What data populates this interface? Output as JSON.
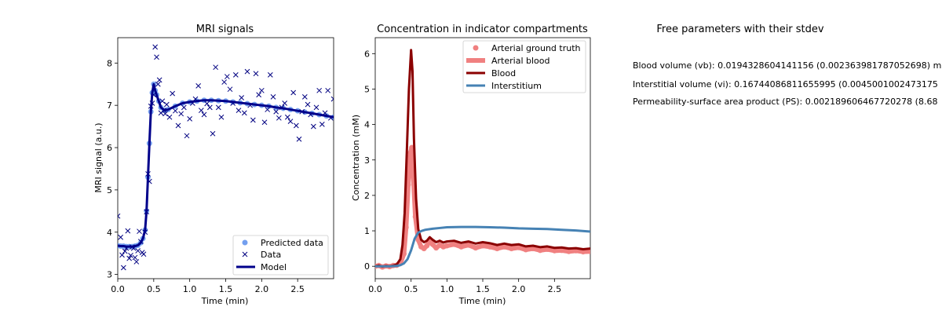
{
  "chart_data": [
    {
      "type": "line",
      "title": "MRI signals",
      "xlabel": "Time (min)",
      "ylabel": "MRI signal (a.u.)",
      "xlim": [
        0,
        3.0
      ],
      "ylim": [
        2.9,
        8.6
      ],
      "xticks": [
        "0.0",
        "0.5",
        "1.0",
        "1.5",
        "2.0",
        "2.5"
      ],
      "yticks": [
        "3",
        "4",
        "5",
        "6",
        "7",
        "8"
      ],
      "legend": {
        "placement": "bottom-right",
        "entries": [
          "Predicted data",
          "Data",
          "Model"
        ]
      },
      "series": [
        {
          "name": "Predicted data",
          "marker": "circle",
          "color": "#6495ed",
          "x": [
            0.0,
            0.04,
            0.08,
            0.12,
            0.16,
            0.2,
            0.24,
            0.28,
            0.32,
            0.35,
            0.38,
            0.4,
            0.42,
            0.44,
            0.46,
            0.48,
            0.5,
            0.52,
            0.54,
            0.57,
            0.6,
            0.65,
            0.7,
            0.8,
            0.9,
            1.0,
            1.1,
            1.2,
            1.3,
            1.4,
            1.5,
            1.6,
            1.7,
            1.8,
            1.9,
            2.0,
            2.1,
            2.2,
            2.3,
            2.4,
            2.5,
            2.6,
            2.7,
            2.8,
            2.9,
            3.0
          ],
          "y": [
            3.68,
            3.67,
            3.67,
            3.66,
            3.66,
            3.66,
            3.67,
            3.69,
            3.75,
            3.85,
            4.05,
            4.5,
            5.3,
            6.1,
            6.85,
            7.3,
            7.5,
            7.35,
            7.25,
            7.1,
            6.95,
            6.88,
            6.9,
            6.98,
            7.05,
            7.08,
            7.1,
            7.12,
            7.12,
            7.11,
            7.1,
            7.08,
            7.06,
            7.04,
            7.02,
            7.0,
            6.98,
            6.95,
            6.93,
            6.9,
            6.87,
            6.84,
            6.81,
            6.78,
            6.75,
            6.72
          ]
        },
        {
          "name": "Data",
          "marker": "x",
          "color": "#000080",
          "x": [
            0.0,
            0.04,
            0.06,
            0.08,
            0.1,
            0.12,
            0.14,
            0.16,
            0.18,
            0.2,
            0.22,
            0.24,
            0.26,
            0.28,
            0.3,
            0.32,
            0.34,
            0.36,
            0.38,
            0.4,
            0.42,
            0.44,
            0.46,
            0.48,
            0.5,
            0.52,
            0.54,
            0.56,
            0.58,
            0.6,
            0.62,
            0.64,
            0.66,
            0.68,
            0.72,
            0.76,
            0.8,
            0.84,
            0.88,
            0.92,
            0.96,
            1.0,
            1.04,
            1.08,
            1.12,
            1.16,
            1.2,
            1.24,
            1.28,
            1.32,
            1.36,
            1.4,
            1.44,
            1.48,
            1.52,
            1.56,
            1.6,
            1.64,
            1.68,
            1.72,
            1.76,
            1.8,
            1.84,
            1.88,
            1.92,
            1.96,
            2.0,
            2.04,
            2.08,
            2.12,
            2.16,
            2.2,
            2.24,
            2.28,
            2.32,
            2.36,
            2.4,
            2.44,
            2.48,
            2.52,
            2.56,
            2.6,
            2.64,
            2.68,
            2.72,
            2.76,
            2.8,
            2.84,
            2.88,
            2.92,
            2.96,
            3.0
          ],
          "y": [
            4.38,
            3.88,
            3.46,
            3.16,
            3.55,
            3.62,
            4.03,
            3.38,
            3.45,
            3.65,
            3.62,
            3.4,
            3.3,
            3.56,
            4.02,
            3.78,
            3.52,
            3.48,
            4.0,
            4.48,
            5.38,
            5.2,
            6.98,
            7.05,
            7.25,
            8.38,
            8.14,
            7.5,
            7.6,
            6.82,
            7.1,
            6.88,
            6.8,
            7.02,
            6.72,
            7.28,
            6.87,
            6.52,
            6.8,
            6.95,
            6.28,
            6.68,
            7.05,
            7.15,
            7.46,
            6.88,
            6.78,
            7.04,
            6.95,
            6.33,
            7.9,
            6.95,
            6.72,
            7.55,
            7.68,
            7.38,
            7.05,
            7.72,
            6.88,
            7.18,
            6.82,
            7.8,
            7.0,
            6.65,
            7.75,
            7.25,
            7.35,
            6.6,
            6.9,
            7.72,
            7.2,
            6.85,
            6.7,
            6.95,
            7.05,
            6.72,
            6.62,
            7.3,
            6.52,
            6.2,
            6.85,
            7.2,
            7.02,
            6.78,
            6.5,
            6.95,
            7.35,
            6.55,
            6.82,
            7.35,
            6.7,
            7.15
          ]
        },
        {
          "name": "Model",
          "marker": "line",
          "color": "#00008b",
          "x": [
            0.0,
            0.04,
            0.08,
            0.12,
            0.16,
            0.2,
            0.24,
            0.28,
            0.32,
            0.35,
            0.38,
            0.4,
            0.42,
            0.44,
            0.46,
            0.48,
            0.5,
            0.52,
            0.54,
            0.57,
            0.6,
            0.65,
            0.7,
            0.8,
            0.9,
            1.0,
            1.1,
            1.2,
            1.3,
            1.4,
            1.5,
            1.6,
            1.7,
            1.8,
            1.9,
            2.0,
            2.1,
            2.2,
            2.3,
            2.4,
            2.5,
            2.6,
            2.7,
            2.8,
            2.9,
            3.0
          ],
          "y": [
            3.68,
            3.67,
            3.67,
            3.66,
            3.66,
            3.66,
            3.67,
            3.69,
            3.75,
            3.85,
            4.05,
            4.5,
            5.3,
            6.1,
            6.85,
            7.3,
            7.5,
            7.35,
            7.25,
            7.1,
            6.95,
            6.88,
            6.9,
            6.98,
            7.05,
            7.08,
            7.1,
            7.12,
            7.12,
            7.11,
            7.1,
            7.08,
            7.06,
            7.04,
            7.02,
            7.0,
            6.98,
            6.95,
            6.93,
            6.9,
            6.87,
            6.84,
            6.81,
            6.78,
            6.75,
            6.72
          ]
        }
      ]
    },
    {
      "type": "line",
      "title": "Concentration in indicator compartments",
      "xlabel": "Time (min)",
      "ylabel": "Concentration (mM)",
      "xlim": [
        0,
        3.0
      ],
      "ylim": [
        -0.35,
        6.45
      ],
      "xticks": [
        "0.0",
        "0.5",
        "1.0",
        "1.5",
        "2.0",
        "2.5"
      ],
      "yticks": [
        "0",
        "1",
        "2",
        "3",
        "4",
        "5",
        "6"
      ],
      "legend": {
        "placement": "top-right",
        "entries": [
          "Arterial ground truth",
          "Arterial blood",
          "Blood",
          "Interstitium"
        ]
      },
      "series": [
        {
          "name": "Arterial ground truth",
          "marker": "circle",
          "color": "#f08080",
          "x": [
            0.0,
            0.05,
            0.1,
            0.15,
            0.2,
            0.25,
            0.3,
            0.35,
            0.4,
            0.43,
            0.46,
            0.49,
            0.51,
            0.53,
            0.56,
            0.6,
            0.64,
            0.68,
            0.72,
            0.76,
            0.8,
            0.85,
            0.9,
            0.95,
            1.0,
            1.1,
            1.2,
            1.3,
            1.4,
            1.5,
            1.6,
            1.7,
            1.8,
            1.9,
            2.0,
            2.1,
            2.2,
            2.3,
            2.4,
            2.5,
            2.6,
            2.7,
            2.8,
            2.9,
            3.0
          ],
          "y": [
            0.0,
            0.02,
            -0.02,
            0.01,
            -0.01,
            0.02,
            0.03,
            0.08,
            0.35,
            1.1,
            2.3,
            3.2,
            3.35,
            2.6,
            1.4,
            0.75,
            0.55,
            0.5,
            0.58,
            0.72,
            0.62,
            0.52,
            0.6,
            0.55,
            0.58,
            0.62,
            0.55,
            0.6,
            0.52,
            0.58,
            0.55,
            0.5,
            0.55,
            0.5,
            0.53,
            0.47,
            0.5,
            0.45,
            0.48,
            0.44,
            0.45,
            0.42,
            0.44,
            0.41,
            0.42
          ]
        },
        {
          "name": "Arterial blood",
          "marker": "line",
          "color": "#f08080",
          "x": [
            0.0,
            0.05,
            0.1,
            0.15,
            0.2,
            0.25,
            0.3,
            0.35,
            0.4,
            0.43,
            0.46,
            0.49,
            0.51,
            0.53,
            0.56,
            0.6,
            0.64,
            0.68,
            0.72,
            0.76,
            0.8,
            0.85,
            0.9,
            0.95,
            1.0,
            1.1,
            1.2,
            1.3,
            1.4,
            1.5,
            1.6,
            1.7,
            1.8,
            1.9,
            2.0,
            2.1,
            2.2,
            2.3,
            2.4,
            2.5,
            2.6,
            2.7,
            2.8,
            2.9,
            3.0
          ],
          "y": [
            0.0,
            0.02,
            -0.02,
            0.01,
            -0.01,
            0.02,
            0.03,
            0.08,
            0.35,
            1.1,
            2.3,
            3.2,
            3.35,
            2.6,
            1.4,
            0.75,
            0.55,
            0.5,
            0.58,
            0.72,
            0.62,
            0.52,
            0.6,
            0.55,
            0.58,
            0.62,
            0.55,
            0.6,
            0.52,
            0.58,
            0.55,
            0.5,
            0.55,
            0.5,
            0.53,
            0.47,
            0.5,
            0.45,
            0.48,
            0.44,
            0.45,
            0.42,
            0.44,
            0.41,
            0.42
          ]
        },
        {
          "name": "Blood",
          "marker": "line",
          "color": "#8b0000",
          "x": [
            0.0,
            0.05,
            0.1,
            0.15,
            0.2,
            0.25,
            0.3,
            0.35,
            0.38,
            0.41,
            0.44,
            0.47,
            0.5,
            0.52,
            0.54,
            0.57,
            0.6,
            0.64,
            0.68,
            0.72,
            0.76,
            0.8,
            0.85,
            0.9,
            0.95,
            1.0,
            1.1,
            1.2,
            1.3,
            1.4,
            1.5,
            1.6,
            1.7,
            1.8,
            1.9,
            2.0,
            2.1,
            2.2,
            2.3,
            2.4,
            2.5,
            2.6,
            2.7,
            2.8,
            2.9,
            3.0
          ],
          "y": [
            0.0,
            0.02,
            -0.01,
            0.01,
            0.0,
            0.02,
            0.05,
            0.2,
            0.6,
            1.5,
            3.2,
            5.0,
            6.1,
            5.5,
            3.6,
            1.9,
            1.05,
            0.75,
            0.68,
            0.72,
            0.82,
            0.75,
            0.68,
            0.72,
            0.67,
            0.7,
            0.72,
            0.66,
            0.7,
            0.64,
            0.68,
            0.65,
            0.6,
            0.64,
            0.6,
            0.62,
            0.56,
            0.58,
            0.54,
            0.56,
            0.52,
            0.53,
            0.5,
            0.51,
            0.48,
            0.5
          ]
        },
        {
          "name": "Interstitium",
          "marker": "line",
          "color": "#4682b4",
          "x": [
            0.0,
            0.1,
            0.2,
            0.3,
            0.35,
            0.4,
            0.45,
            0.5,
            0.55,
            0.6,
            0.65,
            0.7,
            0.8,
            0.9,
            1.0,
            1.2,
            1.4,
            1.6,
            1.8,
            2.0,
            2.2,
            2.4,
            2.6,
            2.8,
            3.0
          ],
          "y": [
            0.0,
            0.0,
            0.0,
            0.01,
            0.03,
            0.08,
            0.2,
            0.45,
            0.78,
            0.95,
            1.0,
            1.03,
            1.06,
            1.08,
            1.1,
            1.11,
            1.11,
            1.1,
            1.09,
            1.07,
            1.06,
            1.05,
            1.03,
            1.01,
            0.98
          ]
        }
      ]
    }
  ],
  "params_panel": {
    "title": "Free parameters with their stdev",
    "lines": [
      "Blood volume (vb): 0.0194328604141156 (0.002363981787052698) m",
      "Interstitial volume (vi): 0.16744086811655995 (0.0045001002473175",
      "Permeability-surface area product (PS): 0.002189606467720278 (8.68"
    ]
  }
}
